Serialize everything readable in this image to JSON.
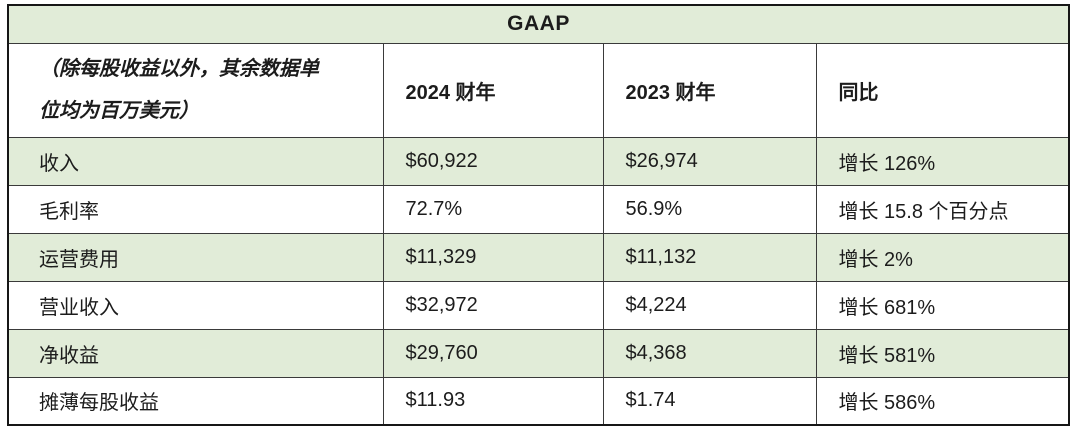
{
  "colors": {
    "row_green": "#e1ecd8",
    "row_white": "#ffffff",
    "border": "#3a3a3a",
    "outer_border": "#161616",
    "text": "#1c1c1c"
  },
  "table": {
    "title": "GAAP",
    "unit_note": "（除每股收益以外，其余数据单位均为百万美元）",
    "col_headers": {
      "fy2024": "2024 财年",
      "fy2023": "2023 财年",
      "yoy": "同比"
    },
    "rows": [
      {
        "label": "收入",
        "fy2024": "$60,922",
        "fy2023": "$26,974",
        "yoy": "增长 126%"
      },
      {
        "label": "毛利率",
        "fy2024": "72.7%",
        "fy2023": "56.9%",
        "yoy": "增长 15.8 个百分点"
      },
      {
        "label": "运营费用",
        "fy2024": "$11,329",
        "fy2023": "$11,132",
        "yoy": "增长 2%"
      },
      {
        "label": "营业收入",
        "fy2024": "$32,972",
        "fy2023": "$4,224",
        "yoy": "增长 681%"
      },
      {
        "label": "净收益",
        "fy2024": "$29,760",
        "fy2023": "$4,368",
        "yoy": "增长 581%"
      },
      {
        "label": "摊薄每股收益",
        "fy2024": "$11.93",
        "fy2023": "$1.74",
        "yoy": "增长 586%"
      }
    ]
  }
}
